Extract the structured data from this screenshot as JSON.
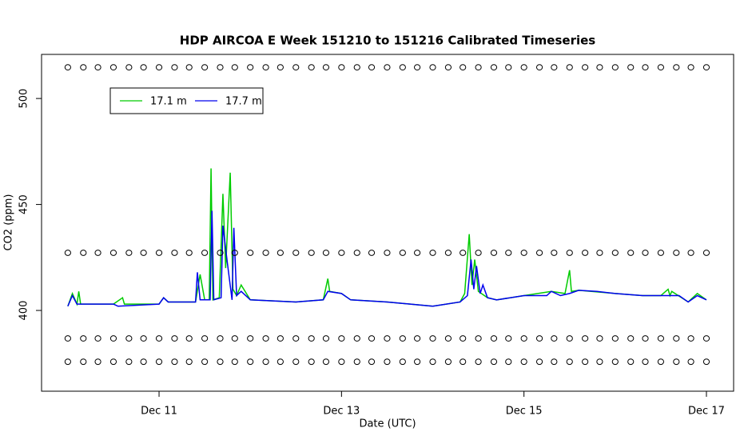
{
  "chart_data": {
    "type": "line",
    "title": "HDP AIRCOA E  Week 151210 to 151216  Calibrated Timeseries",
    "x_label": "Date (UTC)",
    "y_label": "CO2 (ppm)",
    "xlim": [
      9.712,
      17.298
    ],
    "ylim": [
      361.9,
      520.8
    ],
    "xticks": [
      {
        "value": 11,
        "label": "Dec 11"
      },
      {
        "value": 13,
        "label": "Dec 13"
      },
      {
        "value": 15,
        "label": "Dec 15"
      },
      {
        "value": 17,
        "label": "Dec 17"
      }
    ],
    "yticks": [
      400,
      450,
      500
    ],
    "legend": "topleft",
    "series": [
      {
        "name": "17.1 m",
        "color": "#00cc00",
        "marker": "none",
        "x": [
          10.0,
          10.05,
          10.1,
          10.12,
          10.14,
          10.5,
          10.6,
          10.62,
          10.64,
          11.0,
          11.05,
          11.1,
          11.4,
          11.45,
          11.5,
          11.55,
          11.57,
          11.59,
          11.66,
          11.7,
          11.73,
          11.78,
          11.81,
          11.85,
          11.9,
          12.0,
          12.5,
          12.8,
          12.85,
          12.87,
          13.0,
          13.1,
          13.5,
          14.0,
          14.3,
          14.35,
          14.4,
          14.43,
          14.46,
          14.5,
          14.6,
          14.7,
          15.0,
          15.3,
          15.45,
          15.5,
          15.52,
          15.6,
          16.0,
          16.3,
          16.5,
          16.58,
          16.6,
          16.62,
          16.8,
          16.9,
          17.0
        ],
        "values": [
          402,
          408,
          403,
          409,
          403,
          403,
          406,
          403,
          403,
          403,
          406,
          404,
          404,
          417,
          405,
          405,
          467,
          405,
          406,
          455,
          420,
          465,
          410,
          407,
          412,
          405,
          404,
          405,
          415,
          409,
          408,
          405,
          404,
          402,
          404,
          408,
          436,
          412,
          424,
          409,
          406,
          405,
          407,
          409,
          408,
          419,
          409,
          409.5,
          408,
          407,
          407,
          410,
          407,
          409,
          404,
          408,
          405
        ]
      },
      {
        "name": "17.7 m",
        "color": "#0000ee",
        "marker": "none",
        "x": [
          10.0,
          10.05,
          10.1,
          10.5,
          10.55,
          11.0,
          11.05,
          11.1,
          11.4,
          11.42,
          11.45,
          11.56,
          11.58,
          11.6,
          11.68,
          11.7,
          11.75,
          11.8,
          11.82,
          11.85,
          11.9,
          12.0,
          12.5,
          12.8,
          12.85,
          13.0,
          13.1,
          13.5,
          14.0,
          14.3,
          14.38,
          14.42,
          14.45,
          14.48,
          14.52,
          14.55,
          14.6,
          14.7,
          15.0,
          15.25,
          15.3,
          15.4,
          15.5,
          15.6,
          15.8,
          16.0,
          16.3,
          16.5,
          16.7,
          16.8,
          16.9,
          17.0
        ],
        "values": [
          402,
          407,
          403,
          403,
          402,
          403,
          406,
          404,
          404,
          418,
          405,
          405,
          447,
          405,
          406,
          440,
          422,
          405,
          439,
          407,
          409,
          405,
          404,
          405,
          409,
          408,
          405,
          404,
          402,
          404,
          407,
          424,
          410,
          421,
          408,
          412,
          406,
          405,
          407,
          407,
          409,
          407,
          408,
          409.5,
          409,
          408,
          407,
          407,
          407,
          404,
          407,
          405
        ]
      },
      {
        "color": "#000000",
        "marker": "circle",
        "x": [
          10,
          10.17,
          10.33,
          10.5,
          10.67,
          10.83,
          11,
          11.17,
          11.33,
          11.5,
          11.67,
          11.83,
          12,
          12.17,
          12.33,
          12.5,
          12.67,
          12.83,
          13,
          13.17,
          13.33,
          13.5,
          13.67,
          13.83,
          14,
          14.17,
          14.33,
          14.5,
          14.67,
          14.83,
          15,
          15.17,
          15.33,
          15.5,
          15.67,
          15.83,
          16,
          16.17,
          16.33,
          16.5,
          16.67,
          16.83,
          17
        ],
        "values": [
          514.7,
          514.7,
          514.7,
          514.7,
          514.7,
          514.7,
          514.7,
          514.7,
          514.7,
          514.7,
          514.7,
          514.7,
          514.7,
          514.7,
          514.7,
          514.7,
          514.7,
          514.7,
          514.7,
          514.7,
          514.7,
          514.7,
          514.7,
          514.7,
          514.7,
          514.7,
          514.7,
          514.7,
          514.7,
          514.7,
          514.7,
          514.7,
          514.7,
          514.7,
          514.7,
          514.7,
          514.7,
          514.7,
          514.7,
          514.7,
          514.7,
          514.7,
          514.7
        ]
      },
      {
        "color": "#000000",
        "marker": "circle",
        "x": [
          10,
          10.17,
          10.33,
          10.5,
          10.67,
          10.83,
          11,
          11.17,
          11.33,
          11.5,
          11.67,
          11.83,
          12,
          12.17,
          12.33,
          12.5,
          12.67,
          12.83,
          13,
          13.17,
          13.33,
          13.5,
          13.67,
          13.83,
          14,
          14.17,
          14.33,
          14.5,
          14.67,
          14.83,
          15,
          15.17,
          15.33,
          15.5,
          15.67,
          15.83,
          16,
          16.17,
          16.33,
          16.5,
          16.67,
          16.83,
          17
        ],
        "values": [
          427.2,
          427.2,
          427.2,
          427.2,
          427.2,
          427.2,
          427.2,
          427.2,
          427.2,
          427.2,
          427.2,
          427.2,
          427.2,
          427.2,
          427.2,
          427.2,
          427.2,
          427.2,
          427.2,
          427.2,
          427.2,
          427.2,
          427.2,
          427.2,
          427.2,
          427.2,
          427.2,
          427.2,
          427.2,
          427.2,
          427.2,
          427.2,
          427.2,
          427.2,
          427.2,
          427.2,
          427.2,
          427.2,
          427.2,
          427.2,
          427.2,
          427.2,
          427.2
        ]
      },
      {
        "color": "#000000",
        "marker": "circle",
        "x": [
          10,
          10.17,
          10.33,
          10.5,
          10.67,
          10.83,
          11,
          11.17,
          11.33,
          11.5,
          11.67,
          11.83,
          12,
          12.17,
          12.33,
          12.5,
          12.67,
          12.83,
          13,
          13.17,
          13.33,
          13.5,
          13.67,
          13.83,
          14,
          14.17,
          14.33,
          14.5,
          14.67,
          14.83,
          15,
          15.17,
          15.33,
          15.5,
          15.67,
          15.83,
          16,
          16.17,
          16.33,
          16.5,
          16.67,
          16.83,
          17
        ],
        "values": [
          386.8,
          386.8,
          386.8,
          386.8,
          386.8,
          386.8,
          386.8,
          386.8,
          386.8,
          386.8,
          386.8,
          386.8,
          386.8,
          386.8,
          386.8,
          386.8,
          386.8,
          386.8,
          386.8,
          386.8,
          386.8,
          386.8,
          386.8,
          386.8,
          386.8,
          386.8,
          386.8,
          386.8,
          386.8,
          386.8,
          386.8,
          386.8,
          386.8,
          386.8,
          386.8,
          386.8,
          386.8,
          386.8,
          386.8,
          386.8,
          386.8,
          386.8,
          386.8
        ]
      },
      {
        "color": "#000000",
        "marker": "circle",
        "x": [
          10,
          10.17,
          10.33,
          10.5,
          10.67,
          10.83,
          11,
          11.17,
          11.33,
          11.5,
          11.67,
          11.83,
          12,
          12.17,
          12.33,
          12.5,
          12.67,
          12.83,
          13,
          13.17,
          13.33,
          13.5,
          13.67,
          13.83,
          14,
          14.17,
          14.33,
          14.5,
          14.67,
          14.83,
          15,
          15.17,
          15.33,
          15.5,
          15.67,
          15.83,
          16,
          16.17,
          16.33,
          16.5,
          16.67,
          16.83,
          17
        ],
        "values": [
          375.8,
          375.8,
          375.8,
          375.8,
          375.8,
          375.8,
          375.8,
          375.8,
          375.8,
          375.8,
          375.8,
          375.8,
          375.8,
          375.8,
          375.8,
          375.8,
          375.8,
          375.8,
          375.8,
          375.8,
          375.8,
          375.8,
          375.8,
          375.8,
          375.8,
          375.8,
          375.8,
          375.8,
          375.8,
          375.8,
          375.8,
          375.8,
          375.8,
          375.8,
          375.8,
          375.8,
          375.8,
          375.8,
          375.8,
          375.8,
          375.8,
          375.8,
          375.8
        ]
      }
    ]
  }
}
